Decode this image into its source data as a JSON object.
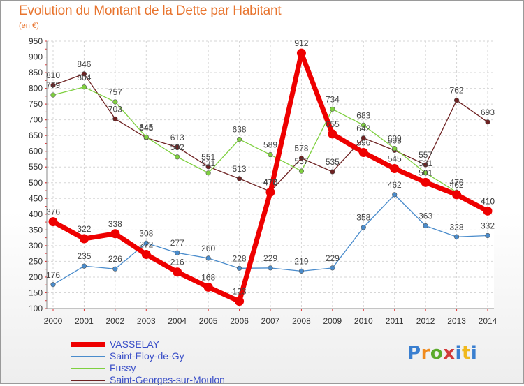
{
  "title": "Evolution du Montant de la Dette par Habitant",
  "subtitle": "(en €)",
  "logo": "Proxiti",
  "chart_data": {
    "type": "line",
    "x": [
      "2000",
      "2001",
      "2002",
      "2003",
      "2004",
      "2005",
      "2006",
      "2007",
      "2008",
      "2009",
      "2010",
      "2011",
      "2012",
      "2013",
      "2014"
    ],
    "ylim": [
      100,
      950
    ],
    "yticks": [
      100,
      150,
      200,
      250,
      300,
      350,
      400,
      450,
      500,
      550,
      600,
      650,
      700,
      750,
      800,
      850,
      900,
      950
    ],
    "grid": true,
    "legend_position": "bottom-left",
    "series": [
      {
        "name": "VASSELAY",
        "color": "#ee0000",
        "values": [
          376,
          322,
          338,
          272,
          216,
          168,
          123,
          470,
          912,
          655,
          596,
          545,
          501,
          462,
          410
        ]
      },
      {
        "name": "Saint-Eloy-de-Gy",
        "color": "#4a8ccc",
        "values": [
          176,
          235,
          226,
          308,
          277,
          260,
          228,
          229,
          219,
          229,
          358,
          462,
          363,
          328,
          332
        ]
      },
      {
        "name": "Fussy",
        "color": "#7fd040",
        "values": [
          779,
          804,
          757,
          645,
          582,
          531,
          638,
          589,
          537,
          734,
          683,
          609,
          531,
          470,
          410
        ]
      },
      {
        "name": "Saint-Georges-sur-Moulon",
        "color": "#6e2222",
        "values": [
          810,
          846,
          703,
          643,
          613,
          551,
          513,
          472,
          578,
          535,
          642,
          603,
          557,
          762,
          693
        ]
      }
    ]
  }
}
